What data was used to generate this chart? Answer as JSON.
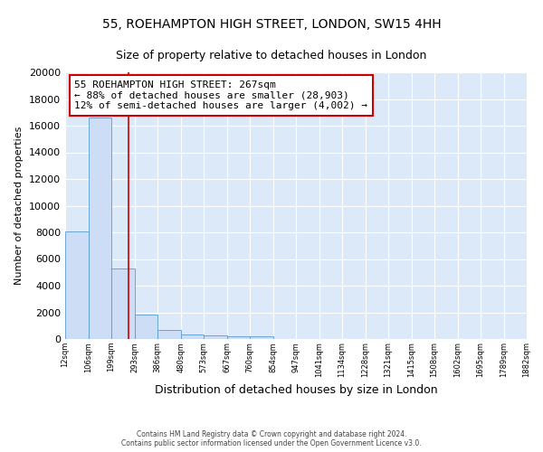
{
  "title": "55, ROEHAMPTON HIGH STREET, LONDON, SW15 4HH",
  "subtitle": "Size of property relative to detached houses in London",
  "xlabel": "Distribution of detached houses by size in London",
  "ylabel": "Number of detached properties",
  "bins": [
    12,
    106,
    199,
    293,
    386,
    480,
    573,
    667,
    760,
    854,
    947,
    1041,
    1134,
    1228,
    1321,
    1415,
    1508,
    1602,
    1695,
    1789,
    1882
  ],
  "bin_labels": [
    "12sqm",
    "106sqm",
    "199sqm",
    "293sqm",
    "386sqm",
    "480sqm",
    "573sqm",
    "667sqm",
    "760sqm",
    "854sqm",
    "947sqm",
    "1041sqm",
    "1134sqm",
    "1228sqm",
    "1321sqm",
    "1415sqm",
    "1508sqm",
    "1602sqm",
    "1695sqm",
    "1789sqm",
    "1882sqm"
  ],
  "counts": [
    8100,
    16600,
    5300,
    1850,
    700,
    350,
    250,
    175,
    175,
    0,
    0,
    0,
    0,
    0,
    0,
    0,
    0,
    0,
    0,
    0
  ],
  "bar_color": "#ccddf5",
  "bar_edge_color": "#5b9bd5",
  "background_color": "#dce9f8",
  "grid_color": "#ffffff",
  "vline_x": 267,
  "vline_color": "#cc0000",
  "annotation_text": "55 ROEHAMPTON HIGH STREET: 267sqm\n← 88% of detached houses are smaller (28,903)\n12% of semi-detached houses are larger (4,002) →",
  "annotation_box_color": "#ffffff",
  "annotation_border_color": "#cc0000",
  "ylim": [
    0,
    20000
  ],
  "yticks": [
    0,
    2000,
    4000,
    6000,
    8000,
    10000,
    12000,
    14000,
    16000,
    18000,
    20000
  ],
  "footer_line1": "Contains HM Land Registry data © Crown copyright and database right 2024.",
  "footer_line2": "Contains public sector information licensed under the Open Government Licence v3.0."
}
